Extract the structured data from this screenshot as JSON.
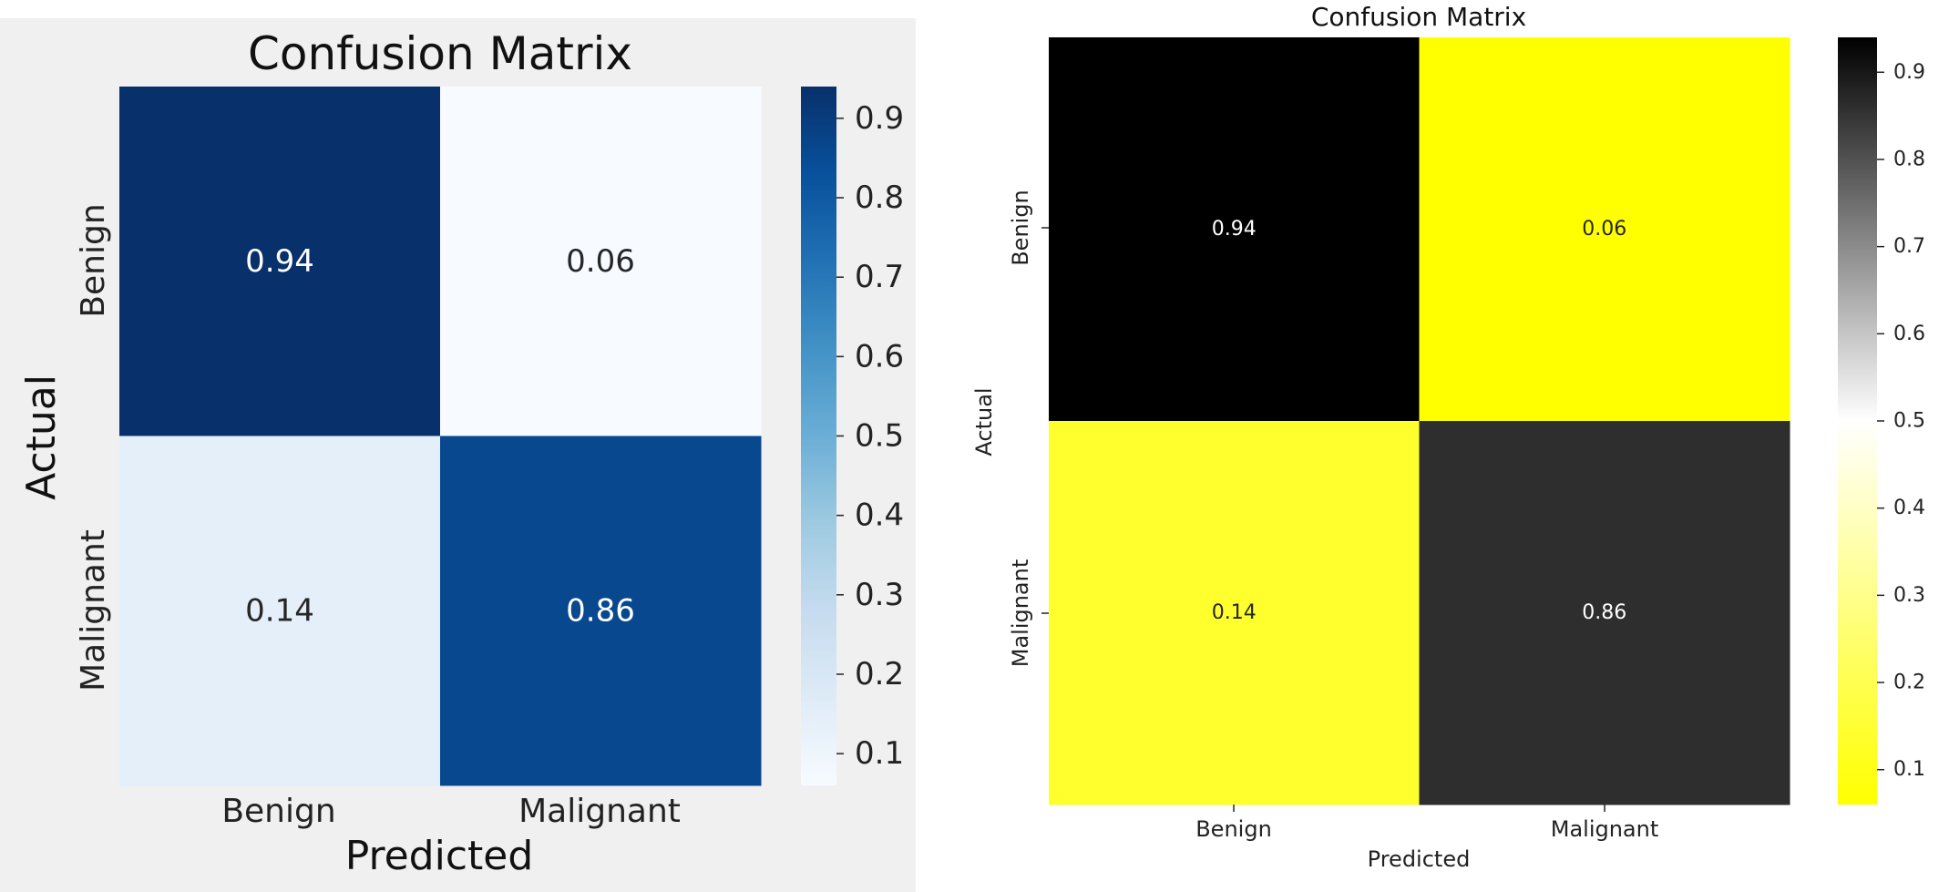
{
  "chart_data": [
    {
      "type": "heatmap",
      "title": "Confusion Matrix",
      "xlabel": "Predicted",
      "ylabel": "Actual",
      "x_categories": [
        "Benign",
        "Malignant"
      ],
      "y_categories": [
        "Benign",
        "Malignant"
      ],
      "values": [
        [
          0.94,
          0.06
        ],
        [
          0.14,
          0.86
        ]
      ],
      "value_labels": [
        [
          "0.94",
          "0.06"
        ],
        [
          "0.14",
          "0.86"
        ]
      ],
      "colormap": "Blues",
      "colorbar": {
        "range": [
          0.06,
          0.94
        ],
        "ticks": [
          0.1,
          0.2,
          0.3,
          0.4,
          0.5,
          0.6,
          0.7,
          0.8,
          0.9
        ],
        "tick_labels": [
          "0.1",
          "0.2",
          "0.3",
          "0.4",
          "0.5",
          "0.6",
          "0.7",
          "0.8",
          "0.9"
        ]
      },
      "background": "#f0f0f0"
    },
    {
      "type": "heatmap",
      "title": "Confusion Matrix",
      "xlabel": "Predicted",
      "ylabel": "Actual",
      "x_categories": [
        "Benign",
        "Malignant"
      ],
      "y_categories": [
        "Benign",
        "Malignant"
      ],
      "values": [
        [
          0.94,
          0.06
        ],
        [
          0.14,
          0.86
        ]
      ],
      "value_labels": [
        [
          "0.94",
          "0.06"
        ],
        [
          "0.14",
          "0.86"
        ]
      ],
      "colormap": "yellow-white-black",
      "colorbar": {
        "range": [
          0.06,
          0.94
        ],
        "ticks": [
          0.1,
          0.2,
          0.3,
          0.4,
          0.5,
          0.6,
          0.7,
          0.8,
          0.9
        ],
        "tick_labels": [
          "0.1",
          "0.2",
          "0.3",
          "0.4",
          "0.5",
          "0.6",
          "0.7",
          "0.8",
          "0.9"
        ]
      },
      "background": "#ffffff"
    }
  ]
}
